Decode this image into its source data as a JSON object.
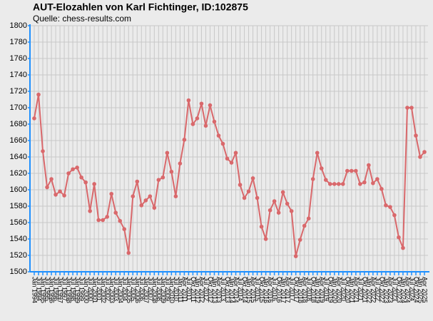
{
  "chart_data": {
    "type": "line",
    "title": "AUT-Elozahlen von Karl Fichtinger, ID:102875",
    "subtitle": "Quelle: chess-results.com",
    "categories": [
      "Jan 1994",
      "Jul 1994",
      "Jan 1995",
      "Jul 1995",
      "Jan 1996",
      "Jul 1996",
      "Jan 1997",
      "Jul 1997",
      "Jan 1998",
      "Jul 1998",
      "Jan 1999",
      "Jul 1999",
      "Jan 2000",
      "Jul 2000",
      "Jan 2001",
      "Jul 2001",
      "Jan 2002",
      "Jul 2002",
      "Jan 2003",
      "Jul 2003",
      "Jan 2004",
      "Jul 2004",
      "Jan 2005",
      "Jul 2005",
      "Jan 2006",
      "Jul 2006",
      "Jan 2007",
      "Jul 2007",
      "Jan 2008",
      "Jul 2008",
      "Jan 2009",
      "Jul 2009",
      "Jan 2010",
      "Jul 2010",
      "Jan 2011",
      "Apr 2011",
      "Jul 2011",
      "Okt 2011",
      "Jan 2012",
      "Apr 2012",
      "Jul 2012",
      "Okt 2012",
      "Jan 2013",
      "Apr 2013",
      "Jul 2013",
      "Okt 2013",
      "Jan 2014",
      "Apr 2014",
      "Jul 2014",
      "Okt 2014",
      "Jan 2015",
      "Apr 2015",
      "Jul 2015",
      "Okt 2015",
      "Jan 2016",
      "Apr 2016",
      "Jul 2016",
      "Okt 2016",
      "Jan 2017",
      "Apr 2017",
      "Jul 2017",
      "Okt 2017",
      "Jan 2018",
      "Apr 2018",
      "Jul 2018",
      "Okt 2018",
      "Jan 2019",
      "Apr 2019",
      "Jul 2019",
      "Okt 2019",
      "Jan 2020",
      "Apr 2020",
      "Jul 2020",
      "Okt 2020",
      "Jan 2021",
      "Apr 2021",
      "Jul 2021",
      "Okt 2021",
      "Jan 2022",
      "Apr 2022",
      "Jul 2022",
      "Okt 2022",
      "Jan 2023",
      "Apr 2023",
      "Jul 2023",
      "Okt 2023",
      "Jan 2024",
      "Apr 2024",
      "Jul 2024",
      "Okt 2024",
      "Jan 2025",
      "Apr 2025"
    ],
    "values": [
      1687,
      1716,
      1647,
      1603,
      1613,
      1594,
      1598,
      1593,
      1620,
      1625,
      1627,
      1615,
      1609,
      1574,
      1607,
      1563,
      1563,
      1567,
      1595,
      1572,
      1562,
      1552,
      1523,
      1592,
      1610,
      1581,
      1587,
      1592,
      1578,
      1612,
      1615,
      1645,
      1622,
      1592,
      1632,
      1661,
      1709,
      1680,
      1687,
      1705,
      1678,
      1703,
      1683,
      1666,
      1656,
      1638,
      1633,
      1645,
      1606,
      1590,
      1598,
      1614,
      1590,
      1555,
      1540,
      1575,
      1586,
      1572,
      1597,
      1583,
      1574,
      1519,
      1539,
      1556,
      1565,
      1613,
      1645,
      1626,
      1612,
      1607,
      1607,
      1607,
      1607,
      1623,
      1623,
      1623,
      1607,
      1609,
      1630,
      1608,
      1613,
      1601,
      1581,
      1579,
      1569,
      1542,
      1529,
      1700,
      1700,
      1666,
      1640,
      1646
    ],
    "color": "#d9686b",
    "ylim": [
      1500,
      1800
    ],
    "yticks": [
      1500,
      1520,
      1540,
      1560,
      1580,
      1600,
      1620,
      1640,
      1660,
      1680,
      1700,
      1720,
      1740,
      1760,
      1780,
      1800
    ],
    "grid": true
  }
}
